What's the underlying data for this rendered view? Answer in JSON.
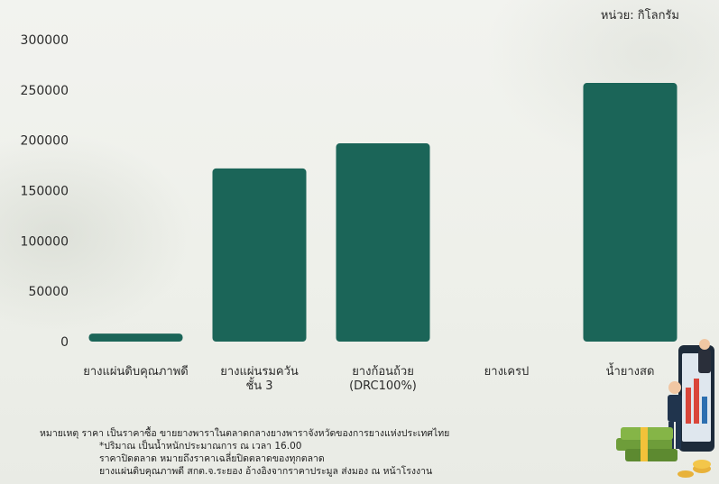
{
  "chart_data": {
    "type": "bar",
    "unit_label": "หน่วย: กิโลกรัม",
    "categories": [
      [
        "ยางแผ่นดิบคุณภาพดี"
      ],
      [
        "ยางแผ่นรมควัน",
        "ชั้น 3"
      ],
      [
        "ยางก้อนถ้วย",
        "(DRC100%)"
      ],
      [
        "ยางเครป"
      ],
      [
        "น้ำยางสด"
      ]
    ],
    "values": [
      8000,
      172000,
      197000,
      0,
      257000
    ],
    "ylim": [
      0,
      300000
    ],
    "yticks": [
      "0",
      "50000",
      "100000",
      "150000",
      "200000",
      "250000",
      "300000"
    ],
    "grid": false,
    "bar_color": "#1b6558"
  },
  "notes": [
    "หมายเหตุ ราคา เป็นราคาซื้อ ขายยางพาราในตลาดกลางยางพาราจังหวัดของการยางแห่งประเทศไทย",
    "*ปริมาณ เป็นน้ำหนักประมาณการ ณ เวลา 16.00",
    "ราคาปิดตลาด หมายถึงราคาเฉลี่ยปิดตลาดของทุกตลาด",
    "ยางแผ่นดิบคุณภาพดี สกต.จ.ระยอง อ้างอิงจากราคาประมูล ส่งมอง ณ หน้าโรงงาน"
  ]
}
